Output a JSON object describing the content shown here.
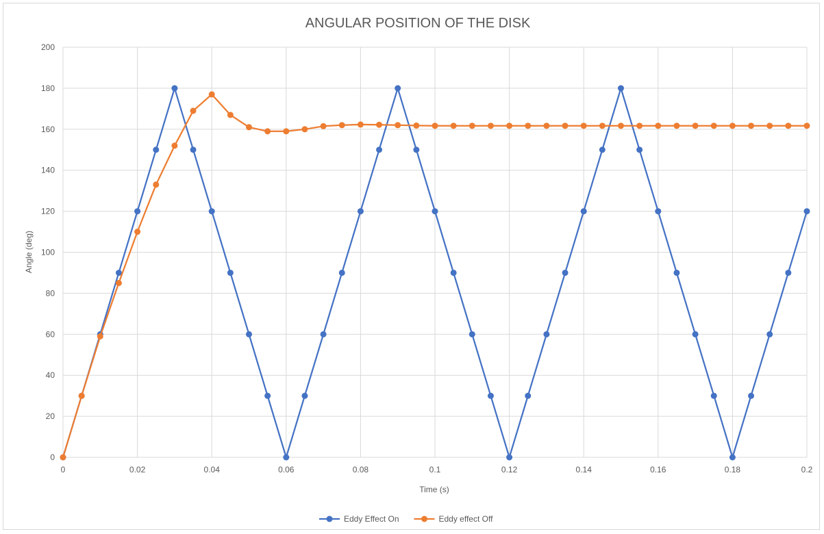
{
  "chart_data": {
    "type": "line",
    "title": "ANGULAR POSITION OF THE DISK",
    "xlabel": "Time (s)",
    "ylabel": "Angle (deg)",
    "xlim": [
      0,
      0.2
    ],
    "ylim": [
      0,
      200
    ],
    "x_ticks": [
      "0",
      "0.02",
      "0.04",
      "0.06",
      "0.08",
      "0.1",
      "0.12",
      "0.14",
      "0.16",
      "0.18",
      "0.2"
    ],
    "y_ticks": [
      "0",
      "20",
      "40",
      "60",
      "80",
      "100",
      "120",
      "140",
      "160",
      "180",
      "200"
    ],
    "grid": true,
    "legend_position": "bottom",
    "x": [
      0,
      0.005,
      0.01,
      0.015,
      0.02,
      0.025,
      0.03,
      0.035,
      0.04,
      0.045,
      0.05,
      0.055,
      0.06,
      0.065,
      0.07,
      0.075,
      0.08,
      0.085,
      0.09,
      0.095,
      0.1,
      0.105,
      0.11,
      0.115,
      0.12,
      0.125,
      0.13,
      0.135,
      0.14,
      0.145,
      0.15,
      0.155,
      0.16,
      0.165,
      0.17,
      0.175,
      0.18,
      0.185,
      0.19,
      0.195,
      0.2
    ],
    "series": [
      {
        "name": "Eddy Effect On",
        "color": "#4472c4",
        "values": [
          0,
          30,
          60,
          90,
          120,
          150,
          180,
          150,
          120,
          90,
          60,
          30,
          0,
          30,
          60,
          90,
          120,
          150,
          180,
          150,
          120,
          90,
          60,
          30,
          0,
          30,
          60,
          90,
          120,
          150,
          180,
          150,
          120,
          90,
          60,
          30,
          0,
          30,
          60,
          90,
          120
        ]
      },
      {
        "name": "Eddy effect Off",
        "color": "#ed7d31",
        "values": [
          0,
          30,
          59,
          85,
          110,
          133,
          152,
          169,
          177,
          167,
          161,
          159,
          159,
          160,
          161.5,
          162,
          162.3,
          162.2,
          162,
          161.8,
          161.7,
          161.7,
          161.7,
          161.7,
          161.7,
          161.7,
          161.7,
          161.7,
          161.7,
          161.7,
          161.7,
          161.7,
          161.7,
          161.7,
          161.7,
          161.7,
          161.7,
          161.7,
          161.7,
          161.7,
          161.7
        ]
      }
    ]
  }
}
